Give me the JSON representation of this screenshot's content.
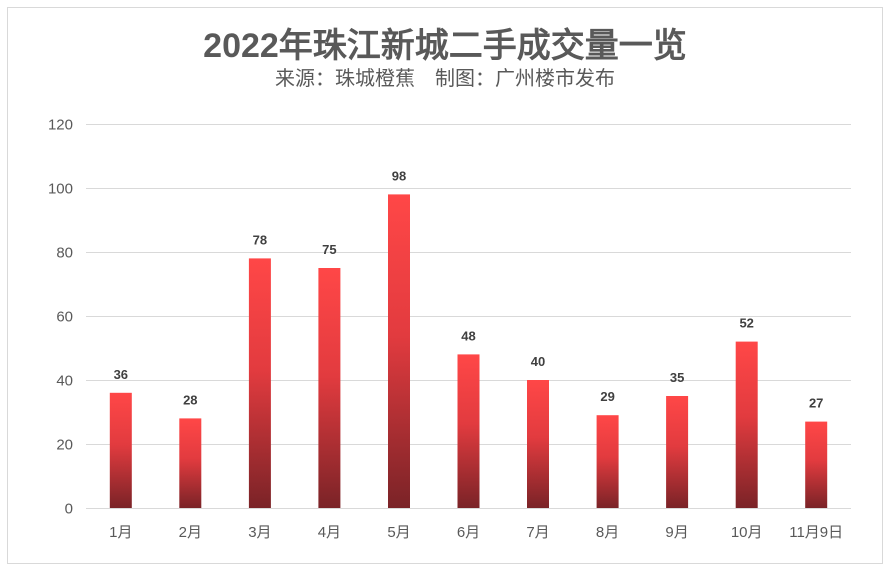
{
  "chart_data": {
    "type": "bar",
    "title": "2022年珠江新城二手成交量一览",
    "subtitle": "来源：珠城橙蕉　制图：广州楼市发布",
    "xlabel": "",
    "ylabel": "",
    "categories": [
      "1月",
      "2月",
      "3月",
      "4月",
      "5月",
      "6月",
      "7月",
      "8月",
      "9月",
      "10月",
      "11月9日"
    ],
    "values": [
      36,
      28,
      78,
      75,
      98,
      48,
      40,
      29,
      35,
      52,
      27
    ],
    "ylim": [
      0,
      120
    ],
    "yticks": [
      0,
      20,
      40,
      60,
      80,
      100,
      120
    ],
    "grid": true,
    "legend": "none",
    "data_labels": true,
    "colors": {
      "bar_top": "#ff4747",
      "bar_bottom": "#7a2327",
      "gridline": "#d9d9d9",
      "frame": "#d9d9d9",
      "text": "#595959",
      "value_text": "#404040"
    }
  }
}
